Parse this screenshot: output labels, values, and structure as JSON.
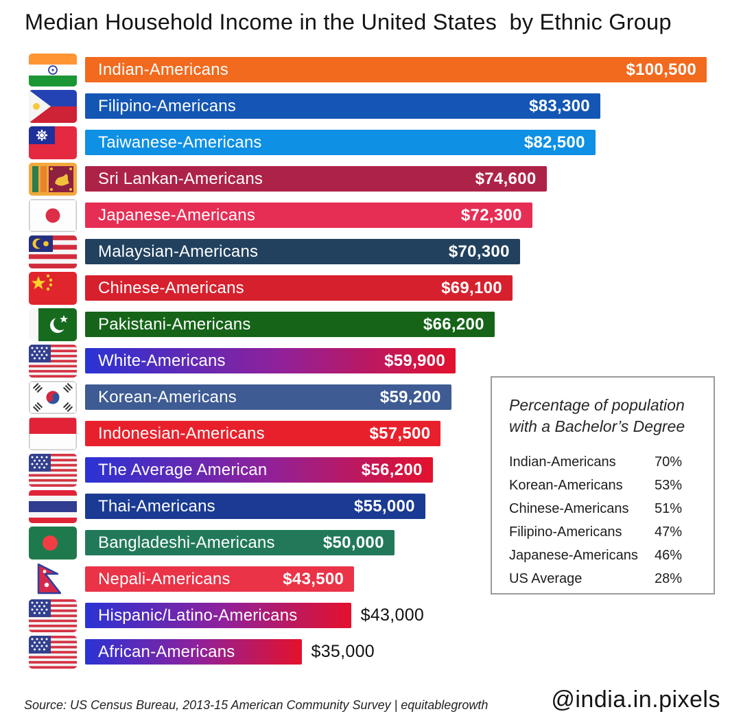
{
  "title": "Median Household Income in the United States  by Ethnic Group",
  "chart_data": {
    "type": "bar",
    "orientation": "horizontal",
    "title": "Median Household Income in the United States by Ethnic Group",
    "xlim": [
      0,
      100500
    ],
    "max_value": 100500,
    "us_flag_gradient": [
      "#2A33D4",
      "#8F219B",
      "#E3112C"
    ],
    "bars": [
      {
        "label": "Indian-Americans",
        "value": 100500,
        "value_label": "$100,500",
        "flag": "india",
        "flag_icon": "india-flag-icon",
        "color": "#F26A1E"
      },
      {
        "label": "Filipino-Americans",
        "value": 83300,
        "value_label": "$83,300",
        "flag": "philippines",
        "flag_icon": "philippines-flag-icon",
        "color": "#1456B4"
      },
      {
        "label": "Taiwanese-Americans",
        "value": 82500,
        "value_label": "$82,500",
        "flag": "taiwan",
        "flag_icon": "taiwan-flag-icon",
        "color": "#0E90E4"
      },
      {
        "label": "Sri Lankan-Americans",
        "value": 74600,
        "value_label": "$74,600",
        "flag": "sri-lanka",
        "flag_icon": "sri-lanka-flag-icon",
        "color": "#AD2347"
      },
      {
        "label": "Japanese-Americans",
        "value": 72300,
        "value_label": "$72,300",
        "flag": "japan",
        "flag_icon": "japan-flag-icon",
        "color": "#E62E55"
      },
      {
        "label": "Malaysian-Americans",
        "value": 70300,
        "value_label": "$70,300",
        "flag": "malaysia",
        "flag_icon": "malaysia-flag-icon",
        "color": "#21415E"
      },
      {
        "label": "Chinese-Americans",
        "value": 69100,
        "value_label": "$69,100",
        "flag": "china",
        "flag_icon": "china-flag-icon",
        "color": "#D7202D"
      },
      {
        "label": "Pakistani-Americans",
        "value": 66200,
        "value_label": "$66,200",
        "flag": "pakistan",
        "flag_icon": "pakistan-flag-icon",
        "color": "#156418"
      },
      {
        "label": "White-Americans",
        "value": 59900,
        "value_label": "$59,900",
        "flag": "usa",
        "flag_icon": "usa-flag-icon",
        "gradient": true
      },
      {
        "label": "Korean-Americans",
        "value": 59200,
        "value_label": "$59,200",
        "flag": "south-korea",
        "flag_icon": "south-korea-flag-icon",
        "color": "#3E5B93"
      },
      {
        "label": "Indonesian-Americans",
        "value": 57500,
        "value_label": "$57,500",
        "flag": "indonesia",
        "flag_icon": "indonesia-flag-icon",
        "color": "#E8202B"
      },
      {
        "label": "The Average American",
        "value": 56200,
        "value_label": "$56,200",
        "flag": "usa",
        "flag_icon": "usa-flag-icon",
        "gradient": true
      },
      {
        "label": "Thai-Americans",
        "value": 55000,
        "value_label": "$55,000",
        "flag": "thailand",
        "flag_icon": "thailand-flag-icon",
        "color": "#1A3A93"
      },
      {
        "label": "Bangladeshi-Americans",
        "value": 50000,
        "value_label": "$50,000",
        "flag": "bangladesh",
        "flag_icon": "bangladesh-flag-icon",
        "color": "#21795A"
      },
      {
        "label": "Nepali-Americans",
        "value": 43500,
        "value_label": "$43,500",
        "flag": "nepal",
        "flag_icon": "nepal-flag-icon",
        "color": "#EA3347"
      },
      {
        "label": "Hispanic/Latino-Americans",
        "value": 43000,
        "value_label": "$43,000",
        "flag": "usa",
        "flag_icon": "usa-flag-icon",
        "gradient": true,
        "value_outside": true
      },
      {
        "label": "African-Americans",
        "value": 35000,
        "value_label": "$35,000",
        "flag": "usa",
        "flag_icon": "usa-flag-icon",
        "gradient": true,
        "value_outside": true
      }
    ]
  },
  "inset": {
    "title_line1": "Percentage of population",
    "title_line2": "with a Bachelor’s Degree",
    "rows": [
      {
        "label": "Indian-Americans",
        "value": "70%"
      },
      {
        "label": "Korean-Americans",
        "value": "53%"
      },
      {
        "label": "Chinese-Americans",
        "value": "51%"
      },
      {
        "label": "Filipino-Americans",
        "value": "47%"
      },
      {
        "label": "Japanese-Americans",
        "value": "46%"
      },
      {
        "label": "US Average",
        "value": "28%"
      }
    ]
  },
  "footer": {
    "source": "Source: US Census Bureau, 2013-15 American Community Survey | equitablegrowth",
    "handle": "@india.in.pixels"
  }
}
